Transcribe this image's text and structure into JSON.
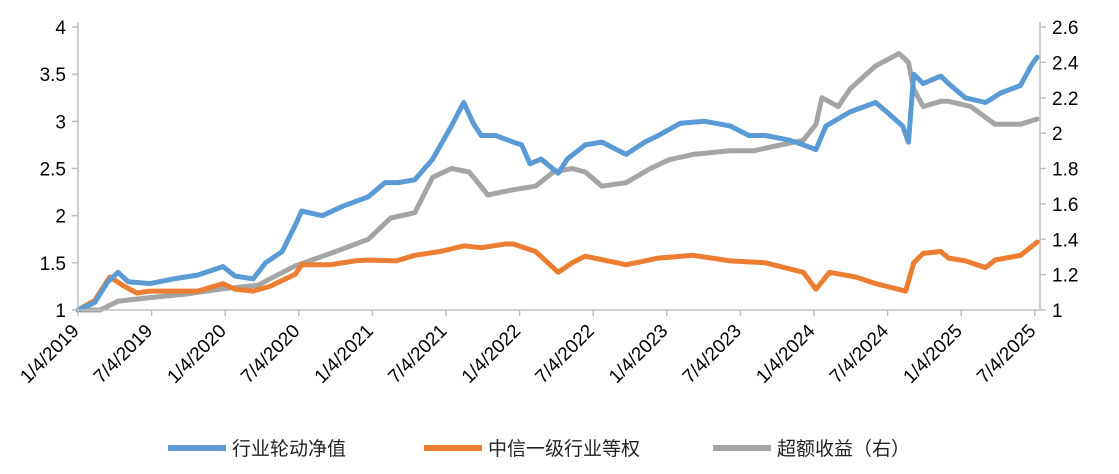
{
  "chart_data": {
    "type": "line",
    "title": "",
    "xlabel": "",
    "ylabel": "",
    "ylim": [
      1,
      4
    ],
    "y2lim": [
      1,
      2.6
    ],
    "grid": false,
    "legend_position": "bottom",
    "y_ticks": [
      "1",
      "1.5",
      "2",
      "2.5",
      "3",
      "3.5",
      "4"
    ],
    "y2_ticks": [
      "1",
      "1.2",
      "1.4",
      "1.6",
      "1.8",
      "2",
      "2.2",
      "2.4",
      "2.6"
    ],
    "x_ticks": [
      "1/4/2019",
      "7/4/2019",
      "1/4/2020",
      "7/4/2020",
      "1/4/2021",
      "7/4/2021",
      "1/4/2022",
      "7/4/2022",
      "1/4/2023",
      "7/4/2023",
      "1/4/2024",
      "7/4/2024",
      "1/4/2025",
      "7/4/2025"
    ],
    "series": [
      {
        "name": "行业轮动净值",
        "color": "#5b9bd5",
        "axis": "left",
        "points": [
          [
            "2019-01-04",
            1.0
          ],
          [
            "2019-02-15",
            1.08
          ],
          [
            "2019-03-20",
            1.3
          ],
          [
            "2019-04-15",
            1.4
          ],
          [
            "2019-05-10",
            1.3
          ],
          [
            "2019-07-04",
            1.28
          ],
          [
            "2019-09-01",
            1.33
          ],
          [
            "2019-11-01",
            1.37
          ],
          [
            "2020-01-04",
            1.46
          ],
          [
            "2020-02-03",
            1.36
          ],
          [
            "2020-03-20",
            1.33
          ],
          [
            "2020-04-20",
            1.5
          ],
          [
            "2020-06-01",
            1.62
          ],
          [
            "2020-07-04",
            1.9
          ],
          [
            "2020-07-20",
            2.05
          ],
          [
            "2020-09-10",
            2.0
          ],
          [
            "2020-11-01",
            2.1
          ],
          [
            "2021-01-04",
            2.2
          ],
          [
            "2021-02-15",
            2.35
          ],
          [
            "2021-03-20",
            2.35
          ],
          [
            "2021-05-01",
            2.38
          ],
          [
            "2021-06-15",
            2.6
          ],
          [
            "2021-08-01",
            2.95
          ],
          [
            "2021-09-01",
            3.2
          ],
          [
            "2021-09-25",
            2.98
          ],
          [
            "2021-10-15",
            2.85
          ],
          [
            "2021-11-20",
            2.85
          ],
          [
            "2022-01-04",
            2.78
          ],
          [
            "2022-01-25",
            2.75
          ],
          [
            "2022-02-15",
            2.55
          ],
          [
            "2022-03-15",
            2.6
          ],
          [
            "2022-04-27",
            2.45
          ],
          [
            "2022-05-20",
            2.6
          ],
          [
            "2022-07-04",
            2.75
          ],
          [
            "2022-08-15",
            2.78
          ],
          [
            "2022-10-15",
            2.65
          ],
          [
            "2022-12-01",
            2.78
          ],
          [
            "2023-01-04",
            2.85
          ],
          [
            "2023-03-01",
            2.98
          ],
          [
            "2023-05-01",
            3.0
          ],
          [
            "2023-07-04",
            2.95
          ],
          [
            "2023-08-20",
            2.85
          ],
          [
            "2023-10-01",
            2.85
          ],
          [
            "2023-12-01",
            2.8
          ],
          [
            "2024-01-04",
            2.75
          ],
          [
            "2024-02-05",
            2.7
          ],
          [
            "2024-03-01",
            2.95
          ],
          [
            "2024-05-01",
            3.1
          ],
          [
            "2024-07-04",
            3.2
          ],
          [
            "2024-08-01",
            3.1
          ],
          [
            "2024-09-10",
            2.95
          ],
          [
            "2024-09-25",
            2.78
          ],
          [
            "2024-10-08",
            3.5
          ],
          [
            "2024-11-01",
            3.4
          ],
          [
            "2024-12-15",
            3.48
          ],
          [
            "2025-01-04",
            3.4
          ],
          [
            "2025-02-15",
            3.25
          ],
          [
            "2025-04-07",
            3.2
          ],
          [
            "2025-05-15",
            3.3
          ],
          [
            "2025-07-04",
            3.38
          ],
          [
            "2025-08-01",
            3.6
          ],
          [
            "2025-08-15",
            3.68
          ]
        ]
      },
      {
        "name": "中信一级行业等权",
        "color": "#ed7d31",
        "axis": "left",
        "points": [
          [
            "2019-01-04",
            1.0
          ],
          [
            "2019-02-15",
            1.1
          ],
          [
            "2019-03-25",
            1.35
          ],
          [
            "2019-05-01",
            1.25
          ],
          [
            "2019-06-01",
            1.18
          ],
          [
            "2019-07-04",
            1.2
          ],
          [
            "2019-09-01",
            1.2
          ],
          [
            "2019-11-01",
            1.2
          ],
          [
            "2020-01-04",
            1.28
          ],
          [
            "2020-02-03",
            1.22
          ],
          [
            "2020-03-20",
            1.2
          ],
          [
            "2020-05-01",
            1.25
          ],
          [
            "2020-07-04",
            1.38
          ],
          [
            "2020-07-20",
            1.48
          ],
          [
            "2020-10-01",
            1.48
          ],
          [
            "2020-12-01",
            1.52
          ],
          [
            "2021-01-04",
            1.53
          ],
          [
            "2021-03-15",
            1.52
          ],
          [
            "2021-05-01",
            1.58
          ],
          [
            "2021-07-04",
            1.62
          ],
          [
            "2021-09-01",
            1.68
          ],
          [
            "2021-10-15",
            1.66
          ],
          [
            "2021-12-15",
            1.7
          ],
          [
            "2022-01-04",
            1.7
          ],
          [
            "2022-03-01",
            1.62
          ],
          [
            "2022-04-27",
            1.4
          ],
          [
            "2022-06-01",
            1.5
          ],
          [
            "2022-07-04",
            1.57
          ],
          [
            "2022-10-15",
            1.48
          ],
          [
            "2022-12-01",
            1.52
          ],
          [
            "2023-01-04",
            1.55
          ],
          [
            "2023-04-01",
            1.58
          ],
          [
            "2023-07-04",
            1.52
          ],
          [
            "2023-10-01",
            1.5
          ],
          [
            "2024-01-04",
            1.4
          ],
          [
            "2024-02-05",
            1.22
          ],
          [
            "2024-03-10",
            1.4
          ],
          [
            "2024-05-15",
            1.35
          ],
          [
            "2024-07-04",
            1.28
          ],
          [
            "2024-09-18",
            1.2
          ],
          [
            "2024-10-08",
            1.5
          ],
          [
            "2024-11-01",
            1.6
          ],
          [
            "2024-12-15",
            1.62
          ],
          [
            "2025-01-04",
            1.55
          ],
          [
            "2025-02-15",
            1.52
          ],
          [
            "2025-04-07",
            1.45
          ],
          [
            "2025-05-01",
            1.53
          ],
          [
            "2025-07-04",
            1.58
          ],
          [
            "2025-08-15",
            1.72
          ]
        ]
      },
      {
        "name": "超额收益（右）",
        "color": "#a5a5a5",
        "axis": "right",
        "points": [
          [
            "2019-01-04",
            1.0
          ],
          [
            "2019-03-01",
            1.0
          ],
          [
            "2019-04-15",
            1.05
          ],
          [
            "2019-07-04",
            1.07
          ],
          [
            "2019-10-01",
            1.09
          ],
          [
            "2020-01-04",
            1.12
          ],
          [
            "2020-04-01",
            1.14
          ],
          [
            "2020-07-04",
            1.25
          ],
          [
            "2020-10-01",
            1.32
          ],
          [
            "2021-01-04",
            1.4
          ],
          [
            "2021-03-01",
            1.52
          ],
          [
            "2021-05-01",
            1.55
          ],
          [
            "2021-06-15",
            1.75
          ],
          [
            "2021-08-01",
            1.8
          ],
          [
            "2021-09-15",
            1.78
          ],
          [
            "2021-11-01",
            1.65
          ],
          [
            "2022-01-04",
            1.68
          ],
          [
            "2022-03-01",
            1.7
          ],
          [
            "2022-04-15",
            1.78
          ],
          [
            "2022-06-01",
            1.8
          ],
          [
            "2022-07-04",
            1.78
          ],
          [
            "2022-08-15",
            1.7
          ],
          [
            "2022-10-15",
            1.72
          ],
          [
            "2022-12-15",
            1.8
          ],
          [
            "2023-02-01",
            1.85
          ],
          [
            "2023-04-01",
            1.88
          ],
          [
            "2023-07-04",
            1.9
          ],
          [
            "2023-09-01",
            1.9
          ],
          [
            "2023-11-01",
            1.93
          ],
          [
            "2024-01-04",
            1.96
          ],
          [
            "2024-02-05",
            2.05
          ],
          [
            "2024-02-20",
            2.2
          ],
          [
            "2024-04-01",
            2.15
          ],
          [
            "2024-05-01",
            2.25
          ],
          [
            "2024-07-04",
            2.38
          ],
          [
            "2024-09-01",
            2.45
          ],
          [
            "2024-09-25",
            2.4
          ],
          [
            "2024-10-08",
            2.25
          ],
          [
            "2024-11-01",
            2.15
          ],
          [
            "2024-12-15",
            2.18
          ],
          [
            "2025-01-04",
            2.18
          ],
          [
            "2025-03-01",
            2.15
          ],
          [
            "2025-05-01",
            2.05
          ],
          [
            "2025-07-04",
            2.05
          ],
          [
            "2025-08-15",
            2.08
          ]
        ]
      }
    ]
  }
}
